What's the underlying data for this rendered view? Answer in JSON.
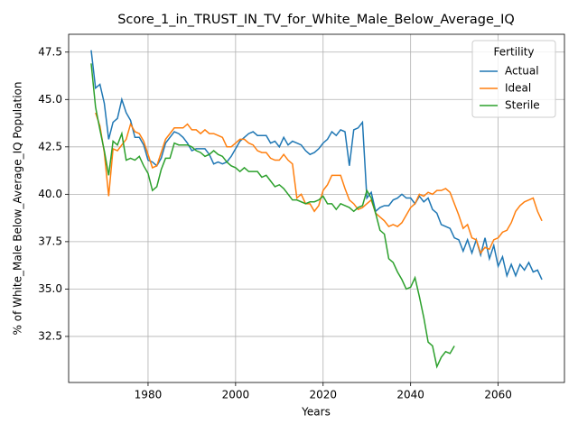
{
  "chart_data": {
    "type": "line",
    "title": "Score_1_in_TRUST_IN_TV_for_White_Male_Below_Average_IQ",
    "xlabel": "Years",
    "ylabel": "% of White_Male Below_Average_IQ Population",
    "legend_title": "Fertility",
    "legend": "upper right",
    "grid": true,
    "xlim": [
      1961.85,
      2075.15
    ],
    "ylim": [
      30.07,
      48.44
    ],
    "xticks": [
      1980,
      2000,
      2020,
      2040,
      2060
    ],
    "yticks": [
      32.5,
      {
        "value": 35,
        "label": "35.0"
      },
      37.5,
      {
        "value": 40,
        "label": "40.0"
      },
      42.5,
      {
        "value": 45,
        "label": "45.0"
      },
      47.5
    ],
    "x": [
      1967,
      1968,
      1969,
      1970,
      1971,
      1972,
      1973,
      1974,
      1975,
      1976,
      1977,
      1978,
      1979,
      1980,
      1981,
      1982,
      1983,
      1984,
      1985,
      1986,
      1987,
      1988,
      1989,
      1990,
      1991,
      1992,
      1993,
      1994,
      1995,
      1996,
      1997,
      1998,
      1999,
      2000,
      2001,
      2002,
      2003,
      2004,
      2005,
      2006,
      2007,
      2008,
      2009,
      2010,
      2011,
      2012,
      2013,
      2014,
      2015,
      2016,
      2017,
      2018,
      2019,
      2020,
      2021,
      2022,
      2023,
      2024,
      2025,
      2026,
      2027,
      2028,
      2029,
      2030,
      2031,
      2032,
      2033,
      2034,
      2035,
      2036,
      2037,
      2038,
      2039,
      2040,
      2041,
      2042,
      2043,
      2044,
      2045,
      2046,
      2047,
      2048,
      2049,
      2050,
      2051,
      2052,
      2053,
      2054,
      2055,
      2056,
      2057,
      2058,
      2059,
      2060,
      2061,
      2062,
      2063,
      2064,
      2065,
      2066,
      2067,
      2068,
      2069,
      2070
    ],
    "series": [
      {
        "name": "Actual",
        "color": "#1f77b4",
        "values": [
          47.6,
          45.6,
          45.8,
          44.8,
          42.9,
          43.8,
          44.0,
          45.0,
          44.3,
          43.9,
          43.0,
          43.0,
          42.6,
          41.8,
          41.7,
          41.5,
          41.9,
          42.7,
          43.0,
          43.3,
          43.2,
          43.0,
          42.7,
          42.3,
          42.4,
          42.4,
          42.4,
          42.1,
          41.6,
          41.7,
          41.6,
          41.7,
          42.0,
          42.4,
          42.8,
          43.0,
          43.2,
          43.3,
          43.1,
          43.1,
          43.1,
          42.7,
          42.8,
          42.5,
          43.0,
          42.6,
          42.8,
          42.7,
          42.6,
          42.3,
          42.1,
          42.2,
          42.4,
          42.7,
          42.9,
          43.3,
          43.1,
          43.4,
          43.3,
          41.5,
          43.4,
          43.5,
          43.8,
          39.8,
          40.1,
          39.1,
          39.3,
          39.4,
          39.4,
          39.7,
          39.8,
          40.0,
          39.8,
          39.8,
          39.5,
          39.9,
          39.6,
          39.8,
          39.2,
          39.0,
          38.4,
          38.3,
          38.2,
          37.7,
          37.6,
          37.0,
          37.6,
          36.9,
          37.6,
          36.8,
          37.7,
          36.6,
          37.3,
          36.2,
          36.7,
          35.7,
          36.3,
          35.7,
          36.3,
          36.0,
          36.4,
          35.9,
          36.0,
          35.5
        ]
      },
      {
        "name": "Ideal",
        "color": "#ff7f0e",
        "values": [
          null,
          44.3,
          43.6,
          42.2,
          39.9,
          42.4,
          42.3,
          42.6,
          42.9,
          43.7,
          43.3,
          43.2,
          42.8,
          42.1,
          41.4,
          41.5,
          42.2,
          42.9,
          43.2,
          43.5,
          43.5,
          43.5,
          43.7,
          43.4,
          43.4,
          43.2,
          43.4,
          43.2,
          43.2,
          43.1,
          43.0,
          42.5,
          42.5,
          42.7,
          42.9,
          42.9,
          42.7,
          42.6,
          42.3,
          42.2,
          42.2,
          41.9,
          41.8,
          41.8,
          42.1,
          41.8,
          41.6,
          39.8,
          40.0,
          39.5,
          39.5,
          39.1,
          39.4,
          40.2,
          40.5,
          41.0,
          41.0,
          41.0,
          40.3,
          39.7,
          39.5,
          39.2,
          39.3,
          39.5,
          39.7,
          39.0,
          38.8,
          38.6,
          38.3,
          38.4,
          38.3,
          38.5,
          38.9,
          39.3,
          39.5,
          40.0,
          39.9,
          40.1,
          40.0,
          40.2,
          40.2,
          40.3,
          40.1,
          39.5,
          38.9,
          38.2,
          38.4,
          37.7,
          37.6,
          36.9,
          37.2,
          37.1,
          37.6,
          37.7,
          38.0,
          38.1,
          38.5,
          39.1,
          39.4,
          39.6,
          39.7,
          39.8,
          39.1,
          38.6
        ]
      },
      {
        "name": "Sterile",
        "color": "#2ca02c",
        "values": [
          46.9,
          44.6,
          43.4,
          42.3,
          41.0,
          42.8,
          42.6,
          43.2,
          41.8,
          41.9,
          41.8,
          42.0,
          41.5,
          41.1,
          40.2,
          40.4,
          41.3,
          41.9,
          41.9,
          42.7,
          42.6,
          42.6,
          42.6,
          42.5,
          42.3,
          42.2,
          42.0,
          42.1,
          42.3,
          42.1,
          42.0,
          41.7,
          41.5,
          41.4,
          41.2,
          41.4,
          41.2,
          41.2,
          41.2,
          40.9,
          41.0,
          40.7,
          40.4,
          40.5,
          40.3,
          40.0,
          39.7,
          39.7,
          39.6,
          39.5,
          39.6,
          39.6,
          39.7,
          39.9,
          39.5,
          39.5,
          39.2,
          39.5,
          39.4,
          39.3,
          39.1,
          39.3,
          39.4,
          40.2,
          39.8,
          39.0,
          38.1,
          37.9,
          36.6,
          36.4,
          35.9,
          35.5,
          35.0,
          35.1,
          35.6,
          34.6,
          33.5,
          32.2,
          32.0,
          30.9,
          31.4,
          31.7,
          31.6,
          32.0,
          null,
          null,
          null,
          null,
          null,
          null,
          null,
          null,
          null,
          null,
          null,
          null,
          null,
          null,
          null,
          null,
          null,
          null,
          null,
          null
        ]
      }
    ]
  }
}
